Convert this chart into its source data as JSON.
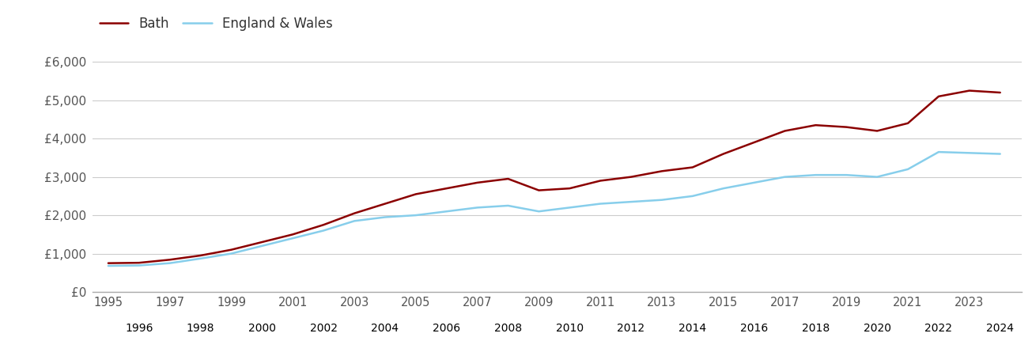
{
  "bath_years": [
    1995,
    1996,
    1997,
    1998,
    1999,
    2000,
    2001,
    2002,
    2003,
    2004,
    2005,
    2006,
    2007,
    2008,
    2009,
    2010,
    2011,
    2012,
    2013,
    2014,
    2015,
    2016,
    2017,
    2018,
    2019,
    2020,
    2021,
    2022,
    2023,
    2024
  ],
  "bath_values": [
    750,
    760,
    840,
    950,
    1100,
    1300,
    1500,
    1750,
    2050,
    2300,
    2550,
    2700,
    2850,
    2950,
    2650,
    2700,
    2900,
    3000,
    3150,
    3250,
    3600,
    3900,
    4200,
    4350,
    4300,
    4200,
    4400,
    5100,
    5250,
    5200
  ],
  "ew_years": [
    1995,
    1996,
    1997,
    1998,
    1999,
    2000,
    2001,
    2002,
    2003,
    2004,
    2005,
    2006,
    2007,
    2008,
    2009,
    2010,
    2011,
    2012,
    2013,
    2014,
    2015,
    2016,
    2017,
    2018,
    2019,
    2020,
    2021,
    2022,
    2024
  ],
  "ew_values": [
    680,
    690,
    750,
    870,
    1000,
    1200,
    1400,
    1600,
    1850,
    1950,
    2000,
    2100,
    2200,
    2250,
    2100,
    2200,
    2300,
    2350,
    2400,
    2500,
    2700,
    2850,
    3000,
    3050,
    3050,
    3000,
    3200,
    3650,
    3600
  ],
  "bath_color": "#8B0000",
  "ew_color": "#87CEEB",
  "bath_label": "Bath",
  "ew_label": "England & Wales",
  "ylim": [
    0,
    6500
  ],
  "yticks": [
    0,
    1000,
    2000,
    3000,
    4000,
    5000,
    6000
  ],
  "ytick_labels": [
    "£0",
    "£1,000",
    "£2,000",
    "£3,000",
    "£4,000",
    "£5,000",
    "£6,000"
  ],
  "odd_xticks": [
    1995,
    1997,
    1999,
    2001,
    2003,
    2005,
    2007,
    2009,
    2011,
    2013,
    2015,
    2017,
    2019,
    2021,
    2023
  ],
  "even_xticks": [
    1996,
    1998,
    2000,
    2002,
    2004,
    2006,
    2008,
    2010,
    2012,
    2014,
    2016,
    2018,
    2020,
    2022,
    2024
  ],
  "bg_color": "#ffffff",
  "grid_color": "#cccccc",
  "line_width": 1.8,
  "xlim": [
    1994.5,
    2024.7
  ]
}
